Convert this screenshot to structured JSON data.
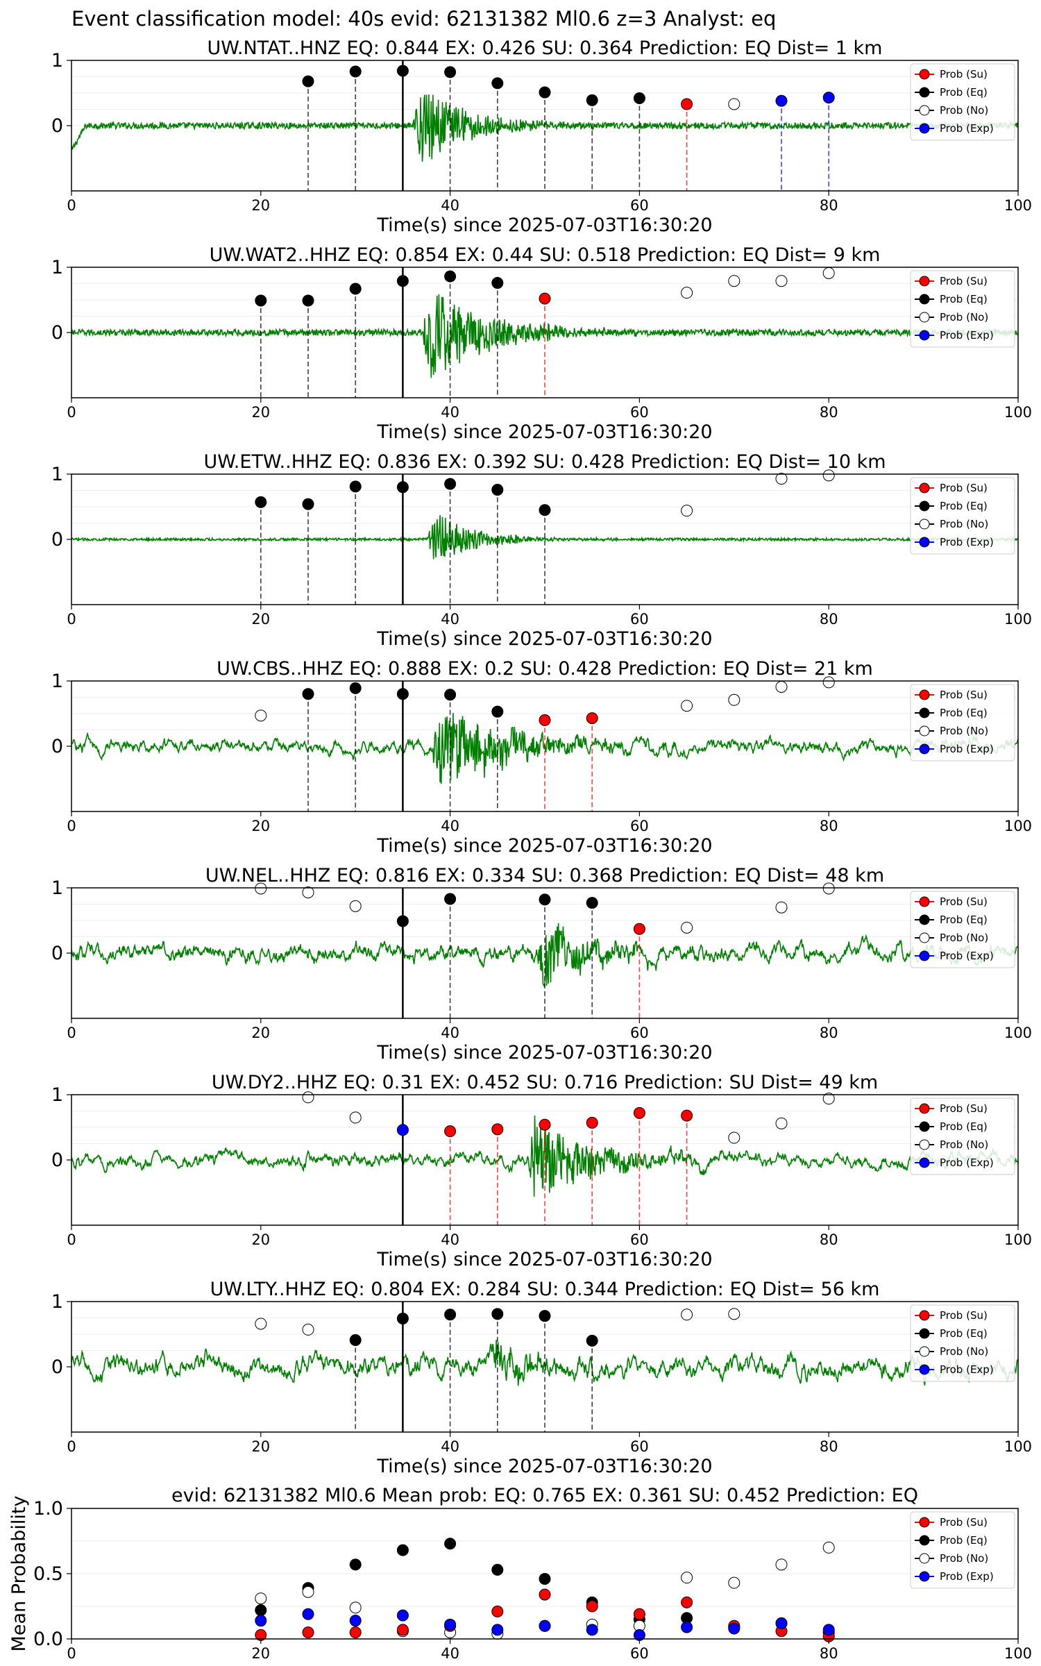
{
  "figure": {
    "suptitle": "Event classification model: 40s evid: 62131382 Ml0.6 z=3 Analyst: eq"
  },
  "legend": {
    "entries": [
      {
        "label": "Prob (Su)",
        "color": "#ff0000",
        "fill": "#ff0000"
      },
      {
        "label": "Prob (Eq)",
        "color": "#000000",
        "fill": "#000000"
      },
      {
        "label": "Prob (No)",
        "color": "#000000",
        "fill": "#ffffff"
      },
      {
        "label": "Prob (Exp)",
        "color": "#0000ff",
        "fill": "#0000ff"
      }
    ]
  },
  "colors": {
    "waveform": "#008000",
    "su": "#ff0000",
    "eq": "#000000",
    "no": "#ffffff",
    "exp": "#0000ff",
    "origin_line": "#000000"
  },
  "chart_data": [
    {
      "type": "line",
      "title": "UW.NTAT..HNZ   EQ: 0.844  EX: 0.426  SU: 0.364   Prediction: EQ    Dist= 1 km",
      "xlabel": "Time(s) since 2025-07-03T16:30:20",
      "ylabel": "",
      "xlim": [
        0,
        100
      ],
      "xticks": [
        "0",
        "20",
        "40",
        "60",
        "80",
        "100"
      ],
      "yticks": [
        "0",
        "1"
      ],
      "origin_time": 35,
      "waveform": {
        "noise": 0.05,
        "signal_start": 36,
        "signal_amp": 0.75,
        "signal_decay": 5
      },
      "points": [
        {
          "t": 25,
          "p": 0.68,
          "cls": "eq"
        },
        {
          "t": 30,
          "p": 0.83,
          "cls": "eq"
        },
        {
          "t": 35,
          "p": 0.84,
          "cls": "eq"
        },
        {
          "t": 40,
          "p": 0.82,
          "cls": "eq"
        },
        {
          "t": 45,
          "p": 0.65,
          "cls": "eq"
        },
        {
          "t": 50,
          "p": 0.51,
          "cls": "eq"
        },
        {
          "t": 55,
          "p": 0.39,
          "cls": "eq"
        },
        {
          "t": 60,
          "p": 0.42,
          "cls": "eq"
        },
        {
          "t": 65,
          "p": 0.33,
          "cls": "su"
        },
        {
          "t": 70,
          "p": 0.33,
          "cls": "no"
        },
        {
          "t": 75,
          "p": 0.38,
          "cls": "exp"
        },
        {
          "t": 80,
          "p": 0.43,
          "cls": "exp"
        }
      ]
    },
    {
      "type": "line",
      "title": "UW.WAT2..HHZ   EQ: 0.854  EX: 0.44  SU: 0.518   Prediction: EQ    Dist= 9 km",
      "xlabel": "Time(s) since 2025-07-03T16:30:20",
      "ylabel": "",
      "xlim": [
        0,
        100
      ],
      "xticks": [
        "0",
        "20",
        "40",
        "60",
        "80",
        "100"
      ],
      "yticks": [
        "0",
        "1"
      ],
      "origin_time": 35,
      "waveform": {
        "noise": 0.05,
        "signal_start": 37,
        "signal_amp": 0.9,
        "signal_decay": 6
      },
      "points": [
        {
          "t": 20,
          "p": 0.49,
          "cls": "eq"
        },
        {
          "t": 25,
          "p": 0.49,
          "cls": "eq"
        },
        {
          "t": 30,
          "p": 0.67,
          "cls": "eq"
        },
        {
          "t": 35,
          "p": 0.79,
          "cls": "eq"
        },
        {
          "t": 40,
          "p": 0.86,
          "cls": "eq"
        },
        {
          "t": 45,
          "p": 0.76,
          "cls": "eq"
        },
        {
          "t": 50,
          "p": 0.52,
          "cls": "su"
        },
        {
          "t": 65,
          "p": 0.61,
          "cls": "no"
        },
        {
          "t": 70,
          "p": 0.79,
          "cls": "no"
        },
        {
          "t": 75,
          "p": 0.79,
          "cls": "no"
        },
        {
          "t": 80,
          "p": 0.91,
          "cls": "no"
        }
      ]
    },
    {
      "type": "line",
      "title": "UW.ETW..HHZ   EQ: 0.836  EX: 0.392  SU: 0.428   Prediction: EQ    Dist= 10 km",
      "xlabel": "Time(s) since 2025-07-03T16:30:20",
      "ylabel": "",
      "xlim": [
        0,
        100
      ],
      "xticks": [
        "0",
        "20",
        "40",
        "60",
        "80",
        "100"
      ],
      "yticks": [
        "0",
        "1"
      ],
      "origin_time": 35,
      "waveform": {
        "noise": 0.02,
        "signal_start": 37.5,
        "signal_amp": 0.55,
        "signal_decay": 4
      },
      "points": [
        {
          "t": 20,
          "p": 0.57,
          "cls": "eq"
        },
        {
          "t": 25,
          "p": 0.54,
          "cls": "eq"
        },
        {
          "t": 30,
          "p": 0.81,
          "cls": "eq"
        },
        {
          "t": 35,
          "p": 0.8,
          "cls": "eq"
        },
        {
          "t": 40,
          "p": 0.85,
          "cls": "eq"
        },
        {
          "t": 45,
          "p": 0.76,
          "cls": "eq"
        },
        {
          "t": 50,
          "p": 0.45,
          "cls": "eq"
        },
        {
          "t": 65,
          "p": 0.44,
          "cls": "no"
        },
        {
          "t": 75,
          "p": 0.93,
          "cls": "no"
        },
        {
          "t": 80,
          "p": 0.98,
          "cls": "no"
        }
      ]
    },
    {
      "type": "line",
      "title": "UW.CBS..HHZ   EQ: 0.888  EX: 0.2  SU: 0.428   Prediction: EQ    Dist= 21 km",
      "xlabel": "Time(s) since 2025-07-03T16:30:20",
      "ylabel": "",
      "xlim": [
        0,
        100
      ],
      "xticks": [
        "0",
        "20",
        "40",
        "60",
        "80",
        "100"
      ],
      "yticks": [
        "0",
        "1"
      ],
      "origin_time": 35,
      "waveform": {
        "noise": 0.2,
        "signal_start": 38,
        "signal_amp": 0.75,
        "signal_decay": 7
      },
      "points": [
        {
          "t": 20,
          "p": 0.47,
          "cls": "no"
        },
        {
          "t": 25,
          "p": 0.8,
          "cls": "eq"
        },
        {
          "t": 30,
          "p": 0.89,
          "cls": "eq"
        },
        {
          "t": 35,
          "p": 0.8,
          "cls": "eq"
        },
        {
          "t": 40,
          "p": 0.79,
          "cls": "eq"
        },
        {
          "t": 45,
          "p": 0.53,
          "cls": "eq"
        },
        {
          "t": 50,
          "p": 0.4,
          "cls": "su"
        },
        {
          "t": 55,
          "p": 0.43,
          "cls": "su"
        },
        {
          "t": 65,
          "p": 0.62,
          "cls": "no"
        },
        {
          "t": 70,
          "p": 0.71,
          "cls": "no"
        },
        {
          "t": 75,
          "p": 0.91,
          "cls": "no"
        },
        {
          "t": 80,
          "p": 0.98,
          "cls": "no"
        }
      ]
    },
    {
      "type": "line",
      "title": "UW.NEL..HHZ   EQ: 0.816  EX: 0.334  SU: 0.368   Prediction: EQ    Dist= 48 km",
      "xlabel": "Time(s) since 2025-07-03T16:30:20",
      "ylabel": "",
      "xlim": [
        0,
        100
      ],
      "xticks": [
        "0",
        "20",
        "40",
        "60",
        "80",
        "100"
      ],
      "yticks": [
        "0",
        "1"
      ],
      "origin_time": 35,
      "waveform": {
        "noise": 0.25,
        "signal_start": 49,
        "signal_amp": 0.55,
        "signal_decay": 5
      },
      "points": [
        {
          "t": 20,
          "p": 0.99,
          "cls": "no"
        },
        {
          "t": 25,
          "p": 0.93,
          "cls": "no"
        },
        {
          "t": 30,
          "p": 0.72,
          "cls": "no"
        },
        {
          "t": 35,
          "p": 0.49,
          "cls": "eq"
        },
        {
          "t": 40,
          "p": 0.83,
          "cls": "eq"
        },
        {
          "t": 50,
          "p": 0.82,
          "cls": "eq"
        },
        {
          "t": 55,
          "p": 0.77,
          "cls": "eq"
        },
        {
          "t": 60,
          "p": 0.37,
          "cls": "su"
        },
        {
          "t": 65,
          "p": 0.39,
          "cls": "no"
        },
        {
          "t": 75,
          "p": 0.7,
          "cls": "no"
        },
        {
          "t": 80,
          "p": 0.99,
          "cls": "no"
        }
      ]
    },
    {
      "type": "line",
      "title": "UW.DY2..HHZ   EQ: 0.31  EX: 0.452  SU: 0.716   Prediction: SU    Dist= 49 km",
      "xlabel": "Time(s) since 2025-07-03T16:30:20",
      "ylabel": "",
      "xlim": [
        0,
        100
      ],
      "xticks": [
        "0",
        "20",
        "40",
        "60",
        "80",
        "100"
      ],
      "yticks": [
        "0",
        "1"
      ],
      "origin_time": 35,
      "waveform": {
        "noise": 0.2,
        "signal_start": 48,
        "signal_amp": 0.85,
        "signal_decay": 6
      },
      "points": [
        {
          "t": 25,
          "p": 0.96,
          "cls": "no"
        },
        {
          "t": 30,
          "p": 0.65,
          "cls": "no"
        },
        {
          "t": 35,
          "p": 0.46,
          "cls": "exp"
        },
        {
          "t": 40,
          "p": 0.44,
          "cls": "su"
        },
        {
          "t": 45,
          "p": 0.47,
          "cls": "su"
        },
        {
          "t": 50,
          "p": 0.54,
          "cls": "su"
        },
        {
          "t": 55,
          "p": 0.57,
          "cls": "su"
        },
        {
          "t": 60,
          "p": 0.72,
          "cls": "su"
        },
        {
          "t": 65,
          "p": 0.68,
          "cls": "su"
        },
        {
          "t": 70,
          "p": 0.34,
          "cls": "no"
        },
        {
          "t": 75,
          "p": 0.56,
          "cls": "no"
        },
        {
          "t": 80,
          "p": 0.94,
          "cls": "no"
        }
      ]
    },
    {
      "type": "line",
      "title": "UW.LTY..HHZ   EQ: 0.804  EX: 0.284  SU: 0.344   Prediction: EQ    Dist= 56 km",
      "xlabel": "Time(s) since 2025-07-03T16:30:20",
      "ylabel": "",
      "xlim": [
        0,
        100
      ],
      "xticks": [
        "0",
        "20",
        "40",
        "60",
        "80",
        "100"
      ],
      "yticks": [
        "0",
        "1"
      ],
      "origin_time": 35,
      "waveform": {
        "noise": 0.3,
        "signal_start": 44,
        "signal_amp": 0.35,
        "signal_decay": 4
      },
      "points": [
        {
          "t": 20,
          "p": 0.66,
          "cls": "no"
        },
        {
          "t": 25,
          "p": 0.57,
          "cls": "no"
        },
        {
          "t": 30,
          "p": 0.41,
          "cls": "eq"
        },
        {
          "t": 35,
          "p": 0.74,
          "cls": "eq"
        },
        {
          "t": 40,
          "p": 0.8,
          "cls": "eq"
        },
        {
          "t": 45,
          "p": 0.81,
          "cls": "eq"
        },
        {
          "t": 50,
          "p": 0.78,
          "cls": "eq"
        },
        {
          "t": 55,
          "p": 0.4,
          "cls": "eq"
        },
        {
          "t": 65,
          "p": 0.8,
          "cls": "no"
        },
        {
          "t": 70,
          "p": 0.81,
          "cls": "no"
        }
      ]
    },
    {
      "type": "scatter",
      "title": "evid: 62131382  Ml0.6   Mean prob:   EQ: 0.765  EX: 0.361  SU: 0.452   Prediction: EQ",
      "xlabel": "",
      "ylabel": "Mean Probability",
      "xlim": [
        0,
        100
      ],
      "ylim": [
        0,
        1
      ],
      "xticks": [
        "0",
        "20",
        "40",
        "60",
        "80",
        "100"
      ],
      "yticks": [
        "0.0",
        "0.5",
        "1.0"
      ],
      "x": [
        20,
        25,
        30,
        35,
        40,
        45,
        50,
        55,
        60,
        65,
        70,
        75,
        80
      ],
      "series": [
        {
          "key": "eq",
          "values": [
            0.22,
            0.39,
            0.57,
            0.68,
            0.73,
            0.53,
            0.46,
            0.28,
            0.15,
            0.16,
            0.09,
            0.12,
            0.05
          ]
        },
        {
          "key": "no",
          "values": [
            0.31,
            0.36,
            0.24,
            0.06,
            0.05,
            0.04,
            0.1,
            0.11,
            0.1,
            0.47,
            0.43,
            0.57,
            0.7
          ]
        },
        {
          "key": "su",
          "values": [
            0.03,
            0.05,
            0.05,
            0.07,
            0.1,
            0.21,
            0.34,
            0.25,
            0.19,
            0.28,
            0.1,
            0.06,
            0.02
          ]
        },
        {
          "key": "exp",
          "values": [
            0.14,
            0.19,
            0.14,
            0.18,
            0.11,
            0.07,
            0.1,
            0.07,
            0.03,
            0.09,
            0.08,
            0.12,
            0.07
          ]
        }
      ]
    }
  ]
}
